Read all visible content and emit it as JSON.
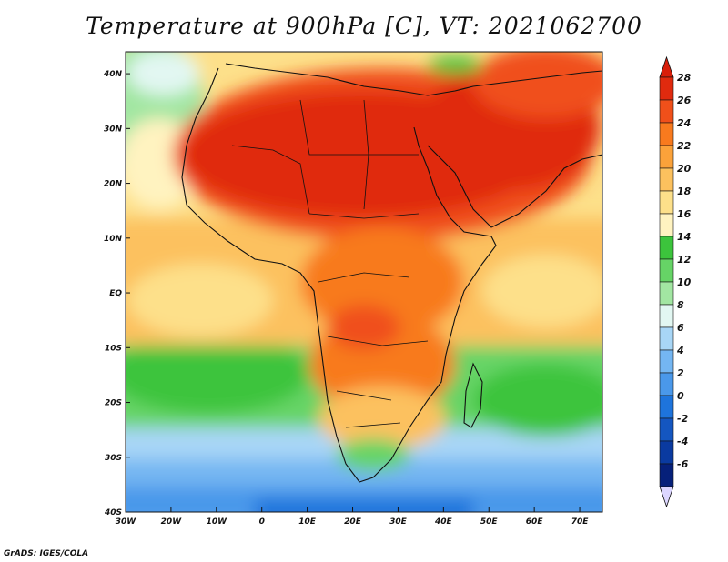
{
  "title": "Temperature at 900hPa [C], VT: 2021062700",
  "credit": "GrADS: IGES/COLA",
  "map": {
    "lat_labels": [
      {
        "label": "40N",
        "value": 40
      },
      {
        "label": "30N",
        "value": 30
      },
      {
        "label": "20N",
        "value": 20
      },
      {
        "label": "10N",
        "value": 10
      },
      {
        "label": "EQ",
        "value": 0
      },
      {
        "label": "10S",
        "value": -10
      },
      {
        "label": "20S",
        "value": -20
      },
      {
        "label": "30S",
        "value": -30
      },
      {
        "label": "40S",
        "value": -40
      }
    ],
    "lon_labels": [
      {
        "label": "30W",
        "value": -30
      },
      {
        "label": "20W",
        "value": -20
      },
      {
        "label": "10W",
        "value": -10
      },
      {
        "label": "0",
        "value": 0
      },
      {
        "label": "10E",
        "value": 10
      },
      {
        "label": "20E",
        "value": 20
      },
      {
        "label": "30E",
        "value": 30
      },
      {
        "label": "40E",
        "value": 40
      },
      {
        "label": "50E",
        "value": 50
      },
      {
        "label": "60E",
        "value": 60
      },
      {
        "label": "70E",
        "value": 70
      }
    ],
    "lat_range": [
      -40,
      44
    ],
    "lon_range": [
      -30,
      75
    ]
  },
  "colorbar": {
    "levels": [
      "28",
      "26",
      "24",
      "22",
      "20",
      "18",
      "16",
      "14",
      "12",
      "10",
      "8",
      "6",
      "4",
      "2",
      "0",
      "-2",
      "-4",
      "-6"
    ],
    "colors": [
      "#e02a0e",
      "#f0501a",
      "#f87a1e",
      "#fba23a",
      "#fcc15e",
      "#fde08a",
      "#fff3c0",
      "#3cc43c",
      "#66d466",
      "#a2e6a2",
      "#e2f7f2",
      "#a8d6f6",
      "#74b6f2",
      "#4a98ea",
      "#1e74dc",
      "#1456c0",
      "#0a3aa0",
      "#06207a"
    ],
    "top_color": "#d81e0a",
    "bottom_color": "#dcd6ff"
  }
}
